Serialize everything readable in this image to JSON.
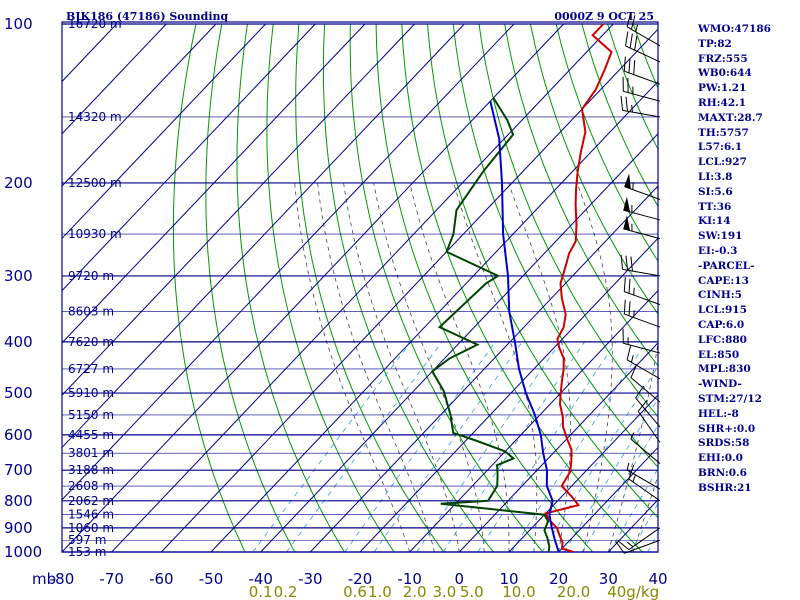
{
  "header": {
    "title": "BJK186 (47186) Sounding",
    "datetime": "0000Z  9 OCT 25"
  },
  "indices": [
    "WMO:47186",
    "TP:82",
    "FRZ:555",
    "WB0:644",
    "PW:1.21",
    "RH:42.1",
    "MAXT:28.7",
    "TH:5757",
    "L57:6.1",
    "LCL:927",
    "LI:3.8",
    "SI:5.6",
    "TT:36",
    "KI:14",
    "SW:191",
    "EI:-0.3",
    "-PARCEL-",
    "CAPE:13",
    "CINH:5",
    "LCL:915",
    "CAP:6.0",
    "LFC:880",
    "EL:850",
    "MPL:830",
    "-WIND-",
    "STM:27/12",
    "HEL:-8",
    "SHR+:0.0",
    "SRDS:58",
    "EHI:0.0",
    "BRN:0.6",
    "BSHR:21"
  ],
  "colors": {
    "grid": "#00008b",
    "dry_adiabat": "#009900",
    "moist_adiabat": "#444444",
    "mixing_ratio": "#3399dd",
    "temperature": "#cc0000",
    "dewpoint": "#004400",
    "parcel": "#0000cc",
    "wind": "#000000",
    "mixing_label": "#888800"
  },
  "chart_data": {
    "type": "line",
    "title": "BJK186 (47186) Sounding",
    "x_axis": {
      "label": "",
      "ticks": [
        -80,
        -70,
        -60,
        -50,
        -40,
        -30,
        -20,
        -10,
        0,
        10,
        20,
        30,
        40
      ],
      "range": [
        -80,
        40
      ]
    },
    "y_axis": {
      "label": "mb",
      "scale": "log",
      "ticks": [
        100,
        200,
        300,
        400,
        500,
        600,
        700,
        800,
        900,
        1000
      ],
      "range": [
        100,
        1000
      ]
    },
    "height_labels": [
      {
        "p": 100,
        "h": "16720 m"
      },
      {
        "p": 150,
        "h": "14320 m"
      },
      {
        "p": 200,
        "h": "12500 m"
      },
      {
        "p": 250,
        "h": "10930 m"
      },
      {
        "p": 300,
        "h": "9720 m"
      },
      {
        "p": 350,
        "h": "8603 m"
      },
      {
        "p": 400,
        "h": "7620 m"
      },
      {
        "p": 450,
        "h": "6727 m"
      },
      {
        "p": 500,
        "h": "5910 m"
      },
      {
        "p": 550,
        "h": "5150 m"
      },
      {
        "p": 600,
        "h": "4455 m"
      },
      {
        "p": 650,
        "h": "3801 m"
      },
      {
        "p": 700,
        "h": "3188 m"
      },
      {
        "p": 750,
        "h": "2608 m"
      },
      {
        "p": 800,
        "h": "2062 m"
      },
      {
        "p": 850,
        "h": "1546 m"
      },
      {
        "p": 900,
        "h": "1060 m"
      },
      {
        "p": 950,
        "h": "597 m"
      },
      {
        "p": 1000,
        "h": "153 m"
      }
    ],
    "mixing_ratio_labels": [
      {
        "label": "0.1",
        "xtemp": -40
      },
      {
        "label": "0.2",
        "xtemp": -35
      },
      {
        "label": "0.6",
        "xtemp": -21
      },
      {
        "label": "1.0",
        "xtemp": -16
      },
      {
        "label": "2.0",
        "xtemp": -9
      },
      {
        "label": "3.0",
        "xtemp": -3
      },
      {
        "label": "5.0",
        "xtemp": 2.5
      },
      {
        "label": "10.0",
        "xtemp": 12
      },
      {
        "label": "20.0",
        "xtemp": 23
      },
      {
        "label": "40g/kg",
        "xtemp": 35
      }
    ],
    "series": [
      {
        "points": [
          [
            100,
            -72
          ],
          [
            105,
            -72
          ],
          [
            113,
            -65
          ],
          [
            122,
            -63
          ],
          [
            133,
            -61
          ],
          [
            145,
            -60
          ],
          [
            160,
            -55
          ],
          [
            175,
            -52
          ],
          [
            190,
            -49
          ],
          [
            205,
            -46
          ],
          [
            220,
            -43
          ],
          [
            240,
            -39
          ],
          [
            258,
            -36
          ],
          [
            272,
            -35
          ],
          [
            290,
            -33
          ],
          [
            310,
            -31
          ],
          [
            330,
            -28
          ],
          [
            355,
            -24
          ],
          [
            375,
            -22
          ],
          [
            395,
            -21
          ],
          [
            410,
            -19
          ],
          [
            430,
            -16
          ],
          [
            450,
            -14
          ],
          [
            475,
            -12
          ],
          [
            500,
            -10
          ],
          [
            525,
            -8
          ],
          [
            555,
            -5
          ],
          [
            580,
            -3
          ],
          [
            610,
            0
          ],
          [
            640,
            3
          ],
          [
            670,
            5
          ],
          [
            705,
            7
          ],
          [
            750,
            8
          ],
          [
            785,
            12
          ],
          [
            815,
            15
          ],
          [
            845,
            10
          ],
          [
            870,
            12
          ],
          [
            900,
            15
          ],
          [
            930,
            17
          ],
          [
            960,
            19
          ],
          [
            985,
            20
          ],
          [
            1000,
            23
          ]
        ]
      },
      {
        "points": [
          [
            138,
            -80
          ],
          [
            152,
            -73
          ],
          [
            162,
            -69
          ],
          [
            190,
            -68
          ],
          [
            225,
            -66
          ],
          [
            250,
            -62
          ],
          [
            270,
            -60
          ],
          [
            300,
            -45
          ],
          [
            310,
            -46
          ],
          [
            375,
            -47
          ],
          [
            405,
            -36
          ],
          [
            430,
            -39
          ],
          [
            455,
            -40
          ],
          [
            495,
            -34
          ],
          [
            550,
            -28
          ],
          [
            595,
            -24
          ],
          [
            615,
            -18
          ],
          [
            645,
            -10
          ],
          [
            665,
            -7
          ],
          [
            685,
            -9
          ],
          [
            715,
            -7
          ],
          [
            750,
            -5
          ],
          [
            800,
            -4
          ],
          [
            810,
            -13
          ],
          [
            850,
            10
          ],
          [
            875,
            12
          ],
          [
            910,
            13
          ],
          [
            940,
            15
          ],
          [
            975,
            17
          ],
          [
            1000,
            18
          ]
        ]
      },
      {
        "points": [
          [
            140,
            -80
          ],
          [
            165,
            -71
          ],
          [
            200,
            -62
          ],
          [
            250,
            -52
          ],
          [
            300,
            -43
          ],
          [
            350,
            -36
          ],
          [
            400,
            -29
          ],
          [
            450,
            -23
          ],
          [
            500,
            -17
          ],
          [
            550,
            -11
          ],
          [
            600,
            -6
          ],
          [
            650,
            -2
          ],
          [
            700,
            2
          ],
          [
            750,
            5
          ],
          [
            800,
            9
          ],
          [
            850,
            11
          ],
          [
            900,
            14
          ],
          [
            950,
            17
          ],
          [
            1000,
            20
          ]
        ]
      }
    ],
    "winds": [
      {
        "p": 110,
        "dir": 300,
        "spd": 25
      },
      {
        "p": 118,
        "dir": 295,
        "spd": 30
      },
      {
        "p": 130,
        "dir": 290,
        "spd": 30
      },
      {
        "p": 140,
        "dir": 285,
        "spd": 25
      },
      {
        "p": 150,
        "dir": 280,
        "spd": 25
      },
      {
        "p": 215,
        "dir": 290,
        "spd": 55
      },
      {
        "p": 235,
        "dir": 285,
        "spd": 55
      },
      {
        "p": 255,
        "dir": 285,
        "spd": 55
      },
      {
        "p": 300,
        "dir": 280,
        "spd": 30
      },
      {
        "p": 340,
        "dir": 290,
        "spd": 25
      },
      {
        "p": 375,
        "dir": 290,
        "spd": 25
      },
      {
        "p": 420,
        "dir": 285,
        "spd": 15
      },
      {
        "p": 470,
        "dir": 300,
        "spd": 15
      },
      {
        "p": 520,
        "dir": 310,
        "spd": 10
      },
      {
        "p": 580,
        "dir": 320,
        "spd": 10
      },
      {
        "p": 620,
        "dir": 325,
        "spd": 10
      },
      {
        "p": 680,
        "dir": 310,
        "spd": 5
      },
      {
        "p": 760,
        "dir": 300,
        "spd": 5
      },
      {
        "p": 800,
        "dir": 305,
        "spd": 15
      },
      {
        "p": 900,
        "dir": 235,
        "spd": 15
      },
      {
        "p": 950,
        "dir": 250,
        "spd": 10
      }
    ]
  }
}
